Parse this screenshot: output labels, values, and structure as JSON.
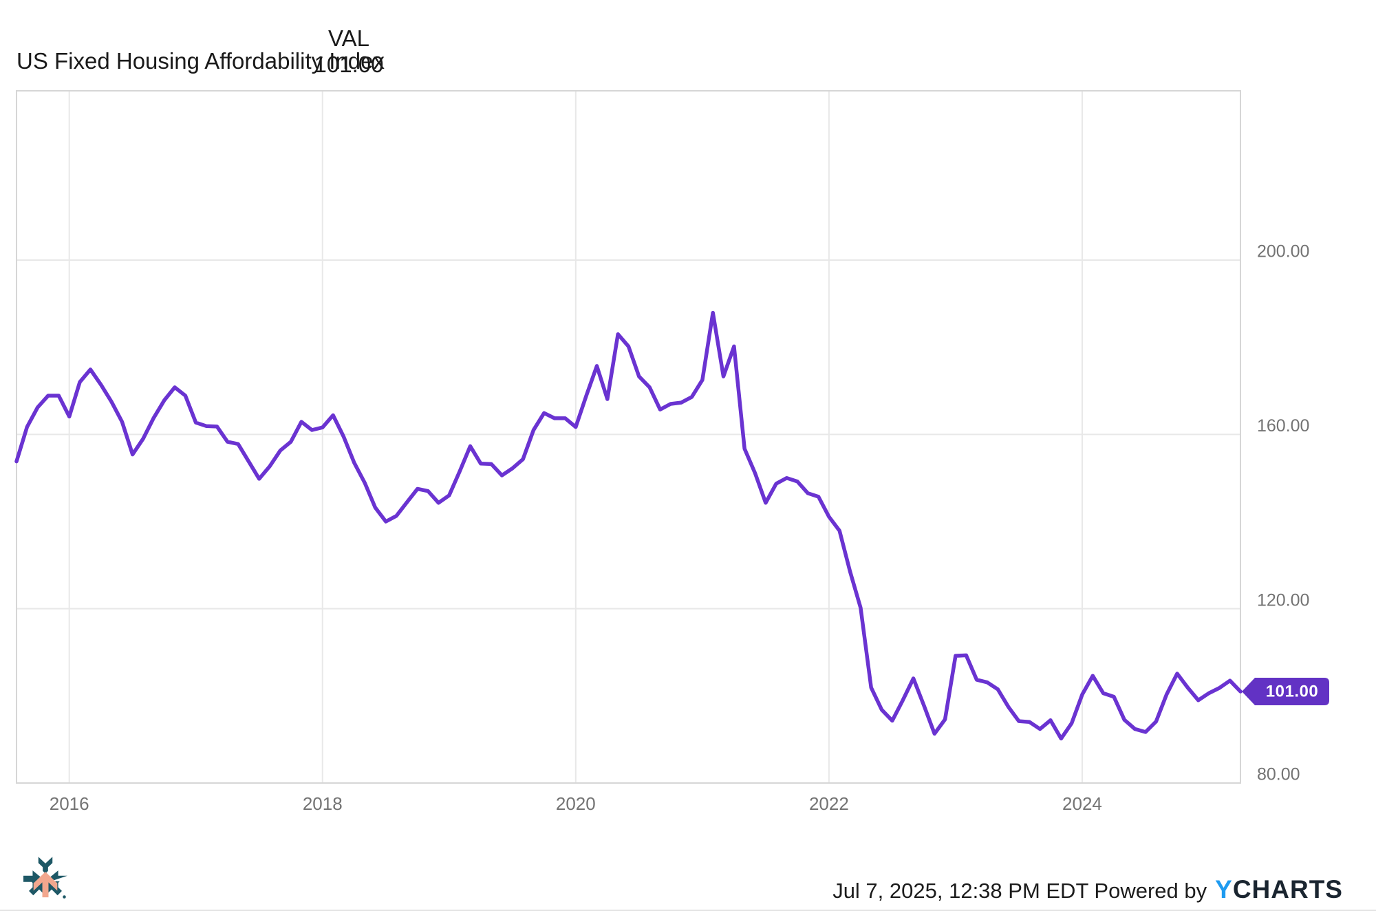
{
  "header": {
    "title": "US Fixed Housing Affordability Index",
    "val_column": {
      "label": "VAL",
      "value": "101.00"
    }
  },
  "chart_data": {
    "type": "line",
    "title": "US Fixed Housing Affordability Index",
    "line_color": "#6A33D1",
    "grid": true,
    "legend_position": "none",
    "x_axis": {
      "tick_labels": [
        "2016",
        "2018",
        "2020",
        "2022",
        "2024"
      ],
      "tick_month_indices": [
        5,
        29,
        53,
        77,
        101
      ]
    },
    "y_axis": {
      "tick_labels": [
        "200.00",
        "160.00",
        "120.00",
        "80.00"
      ],
      "tick_values": [
        200,
        160,
        120,
        80
      ],
      "range": [
        80,
        239
      ]
    },
    "series": [
      {
        "name": "US Fixed Housing Affordability Index",
        "start_month": "2015-08",
        "frequency": "monthly",
        "last_value": 101.0,
        "values": [
          153.8,
          161.7,
          166.2,
          168.9,
          168.9,
          164.1,
          172.0,
          174.9,
          171.4,
          167.5,
          162.9,
          155.4,
          159.0,
          163.8,
          167.8,
          170.8,
          168.9,
          162.7,
          161.9,
          161.8,
          158.3,
          157.8,
          153.8,
          149.8,
          152.7,
          156.3,
          158.3,
          162.9,
          161.0,
          161.6,
          164.4,
          159.5,
          153.5,
          148.9,
          143.2,
          140.0,
          141.3,
          144.4,
          147.5,
          147.0,
          144.3,
          146.0,
          151.5,
          157.3,
          153.3,
          153.2,
          150.6,
          152.2,
          154.3,
          161.0,
          164.9,
          163.7,
          163.7,
          161.7,
          168.9,
          175.7,
          168.1,
          183.0,
          180.2,
          173.3,
          170.8,
          165.7,
          167.0,
          167.3,
          168.6,
          172.5,
          187.9,
          173.3,
          180.2,
          156.7,
          151.1,
          144.3,
          148.7,
          150.0,
          149.2,
          146.5,
          145.7,
          141.1,
          137.9,
          128.5,
          120.2,
          101.9,
          96.8,
          94.3,
          99.0,
          104.0,
          97.8,
          91.3,
          94.6,
          109.2,
          109.3,
          103.7,
          103.1,
          101.5,
          97.5,
          94.2,
          94.0,
          92.4,
          94.4,
          90.2,
          93.7,
          100.3,
          104.6,
          100.6,
          99.8,
          94.5,
          92.4,
          91.7,
          94.1,
          100.3,
          105.1,
          101.9,
          99.0,
          100.6,
          101.8,
          103.5,
          101.0
        ]
      }
    ],
    "end_label": {
      "text": "101.00",
      "color": "#6232C4",
      "text_color": "#ffffff"
    },
    "colors": {
      "grid_line": "#e8e8e8",
      "plot_border": "#d6d6d6",
      "tick_text": "#737373",
      "background": "#ffffff"
    }
  },
  "footer": {
    "timestamp_powered": "Jul 7, 2025, 12:38 PM EDT Powered by",
    "brand_y": "Y",
    "brand_charts": "CHARTS"
  },
  "logo": {
    "teal": "#1E5866",
    "salmon": "#F2A78E"
  }
}
